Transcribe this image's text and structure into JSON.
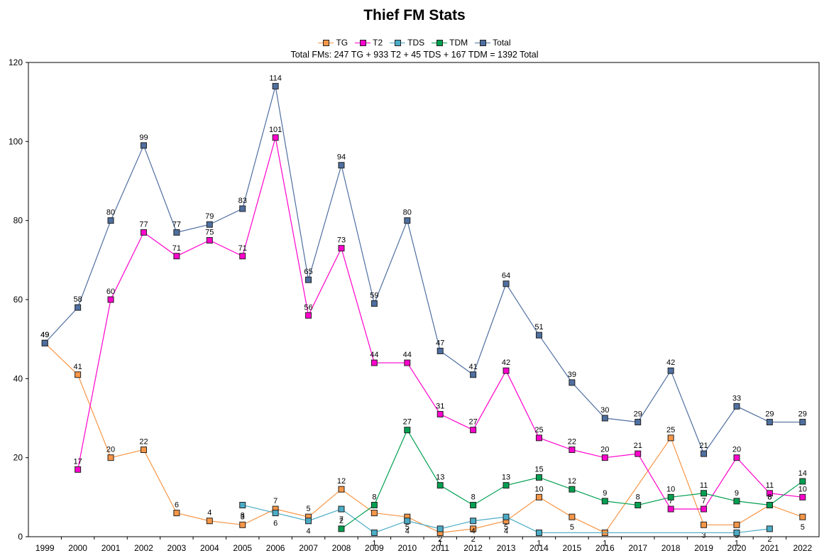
{
  "chart_data": {
    "type": "line",
    "title": "Thief FM Stats",
    "subtitle": "Total FMs: 247 TG + 933 T2 + 45 TDS + 167 TDM = 1392 Total",
    "xlabel": "",
    "ylabel": "",
    "ylim": [
      0,
      120
    ],
    "yticks": [
      "0",
      "20",
      "40",
      "60",
      "80",
      "100",
      "120"
    ],
    "grid": false,
    "legend_position": "top-center",
    "categories": [
      "1999",
      "2000",
      "2001",
      "2002",
      "2003",
      "2004",
      "2005",
      "2006",
      "2007",
      "2008",
      "2009",
      "2010",
      "2011",
      "2012",
      "2013",
      "2014",
      "2015",
      "2016",
      "2017",
      "2018",
      "2019",
      "2020",
      "2021",
      "2022"
    ],
    "series": [
      {
        "name": "TG",
        "color": "#f79646",
        "values": [
          49,
          41,
          20,
          22,
          6,
          4,
          3,
          7,
          5,
          12,
          6,
          5,
          1,
          2,
          4,
          10,
          5,
          1,
          null,
          25,
          3,
          3,
          8,
          5
        ]
      },
      {
        "name": "T2",
        "color": "#ff00cc",
        "values": [
          null,
          17,
          60,
          77,
          71,
          75,
          71,
          101,
          56,
          73,
          44,
          44,
          31,
          27,
          42,
          25,
          22,
          20,
          21,
          7,
          7,
          20,
          11,
          10
        ]
      },
      {
        "name": "TDS",
        "color": "#4bacc6",
        "values": [
          null,
          null,
          null,
          null,
          null,
          null,
          8,
          6,
          4,
          7,
          1,
          4,
          2,
          4,
          5,
          1,
          null,
          null,
          null,
          null,
          null,
          1,
          2,
          null
        ]
      },
      {
        "name": "TDM",
        "color": "#00a050",
        "values": [
          null,
          null,
          null,
          null,
          null,
          null,
          null,
          null,
          null,
          2,
          8,
          27,
          13,
          8,
          13,
          15,
          12,
          9,
          8,
          10,
          11,
          9,
          8,
          14
        ]
      },
      {
        "name": "Total",
        "color": "#4f6fa0",
        "values": [
          49,
          58,
          80,
          99,
          77,
          79,
          83,
          114,
          65,
          94,
          59,
          80,
          47,
          41,
          64,
          51,
          39,
          30,
          29,
          42,
          21,
          33,
          29,
          29
        ]
      }
    ]
  }
}
